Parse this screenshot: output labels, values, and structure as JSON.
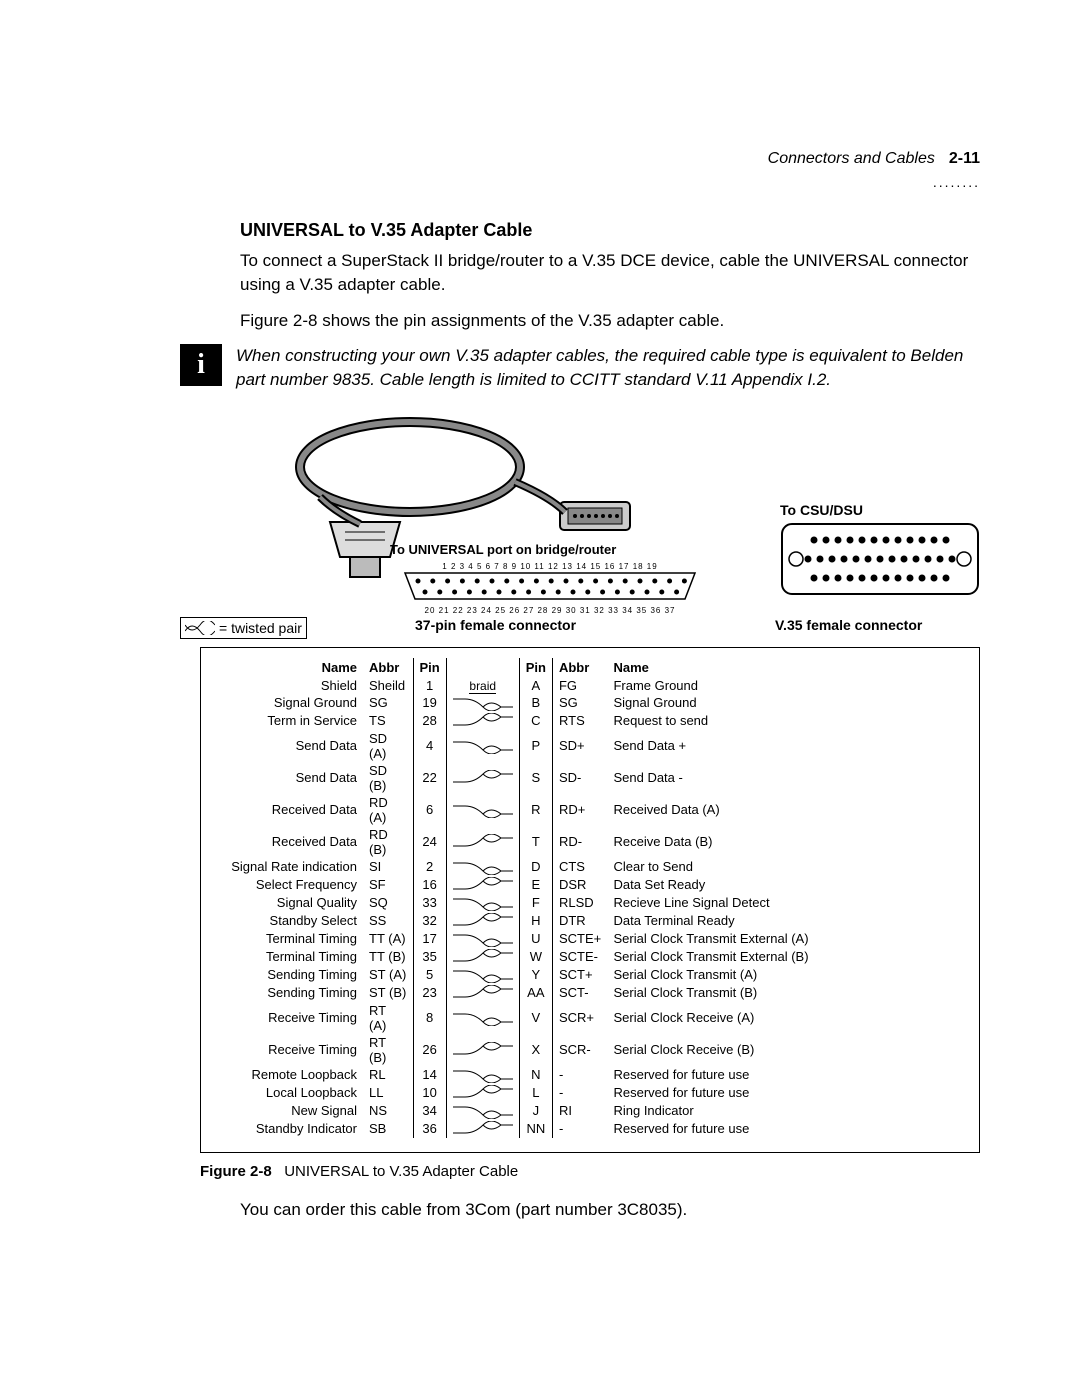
{
  "header": {
    "section_title": "Connectors and Cables",
    "page_number": "2-11",
    "dots": "........"
  },
  "section": {
    "title": "UNIVERSAL to V.35 Adapter Cable",
    "para1": "To connect a SuperStack II bridge/router to a V.35 DCE device, cable the UNIVERSAL connector using a V.35 adapter cable.",
    "para2": "Figure 2-8 shows the pin assignments of the V.35 adapter cable.",
    "note": "When constructing your own V.35 adapter cables, the required cable type is equivalent to Belden part number 9835. Cable length is limited to CCITT standard V.11 Appendix I.2."
  },
  "diagram": {
    "to_csu": "To CSU/DSU",
    "to_universal": "To UNIVERSAL port on bridge/router",
    "twisted_legend": "= twisted pair",
    "left_caption": "37-pin female connector",
    "right_caption": "V.35 female connector",
    "db37_top_pins": "1  2  3  4  5  6  7  8  9 10 11 12 13 14 15 16 17 18 19",
    "db37_bot_pins": "20 21 22 23 24 25 26 27 28 29 30 31 32 33 34 35 36 37"
  },
  "table": {
    "headers": {
      "name_l": "Name",
      "abbr_l": "Abbr",
      "pin_l": "Pin",
      "pin_r": "Pin",
      "abbr_r": "Abbr",
      "name_r": "Name"
    },
    "braid_label": "braid",
    "rows": [
      {
        "name_l": "Shield",
        "abbr_l": "Sheild",
        "pin_l": "1",
        "mid": "braid",
        "pin_r": "A",
        "abbr_r": "FG",
        "name_r": "Frame Ground",
        "pair": "start"
      },
      {
        "name_l": "Signal Ground",
        "abbr_l": "SG",
        "pin_l": "19",
        "mid": "tw",
        "pin_r": "B",
        "abbr_r": "SG",
        "name_r": "Signal Ground",
        "pair": "a"
      },
      {
        "name_l": "Term in Service",
        "abbr_l": "TS",
        "pin_l": "28",
        "mid": "tw",
        "pin_r": "C",
        "abbr_r": "RTS",
        "name_r": "Request to send",
        "pair": "b"
      },
      {
        "name_l": "Send Data",
        "abbr_l": "SD (A)",
        "pin_l": "4",
        "mid": "tw",
        "pin_r": "P",
        "abbr_r": "SD+",
        "name_r": "Send Data +",
        "pair": "a"
      },
      {
        "name_l": "Send Data",
        "abbr_l": "SD (B)",
        "pin_l": "22",
        "mid": "tw",
        "pin_r": "S",
        "abbr_r": "SD-",
        "name_r": "Send Data -",
        "pair": "b"
      },
      {
        "name_l": "Received Data",
        "abbr_l": "RD (A)",
        "pin_l": "6",
        "mid": "tw",
        "pin_r": "R",
        "abbr_r": "RD+",
        "name_r": "Received Data (A)",
        "pair": "a"
      },
      {
        "name_l": "Received Data",
        "abbr_l": "RD (B)",
        "pin_l": "24",
        "mid": "tw",
        "pin_r": "T",
        "abbr_r": "RD-",
        "name_r": "Receive Data (B)",
        "pair": "b"
      },
      {
        "name_l": "Signal Rate indication",
        "abbr_l": "SI",
        "pin_l": "2",
        "mid": "tw",
        "pin_r": "D",
        "abbr_r": "CTS",
        "name_r": "Clear to Send",
        "pair": "a"
      },
      {
        "name_l": "Select Frequency",
        "abbr_l": "SF",
        "pin_l": "16",
        "mid": "tw",
        "pin_r": "E",
        "abbr_r": "DSR",
        "name_r": "Data Set Ready",
        "pair": "b"
      },
      {
        "name_l": "Signal Quality",
        "abbr_l": "SQ",
        "pin_l": "33",
        "mid": "tw",
        "pin_r": "F",
        "abbr_r": "RLSD",
        "name_r": "Recieve Line Signal Detect",
        "pair": "a"
      },
      {
        "name_l": "Standby Select",
        "abbr_l": "SS",
        "pin_l": "32",
        "mid": "tw",
        "pin_r": "H",
        "abbr_r": "DTR",
        "name_r": "Data Terminal Ready",
        "pair": "b"
      },
      {
        "name_l": "Terminal Timing",
        "abbr_l": "TT (A)",
        "pin_l": "17",
        "mid": "tw",
        "pin_r": "U",
        "abbr_r": "SCTE+",
        "name_r": "Serial Clock Transmit External (A)",
        "pair": "a"
      },
      {
        "name_l": "Terminal Timing",
        "abbr_l": "TT (B)",
        "pin_l": "35",
        "mid": "tw",
        "pin_r": "W",
        "abbr_r": "SCTE-",
        "name_r": "Serial Clock Transmit External (B)",
        "pair": "b"
      },
      {
        "name_l": "Sending Timing",
        "abbr_l": "ST (A)",
        "pin_l": "5",
        "mid": "tw",
        "pin_r": "Y",
        "abbr_r": "SCT+",
        "name_r": "Serial Clock Transmit (A)",
        "pair": "a"
      },
      {
        "name_l": "Sending Timing",
        "abbr_l": "ST (B)",
        "pin_l": "23",
        "mid": "tw",
        "pin_r": "AA",
        "abbr_r": "SCT-",
        "name_r": "Serial Clock Transmit (B)",
        "pair": "b"
      },
      {
        "name_l": "Receive Timing",
        "abbr_l": "RT (A)",
        "pin_l": "8",
        "mid": "tw",
        "pin_r": "V",
        "abbr_r": "SCR+",
        "name_r": "Serial Clock Receive (A)",
        "pair": "a"
      },
      {
        "name_l": "Receive Timing",
        "abbr_l": "RT (B)",
        "pin_l": "26",
        "mid": "tw",
        "pin_r": "X",
        "abbr_r": "SCR-",
        "name_r": "Serial Clock Receive (B)",
        "pair": "b"
      },
      {
        "name_l": "Remote Loopback",
        "abbr_l": "RL",
        "pin_l": "14",
        "mid": "tw",
        "pin_r": "N",
        "abbr_r": "-",
        "name_r": "Reserved for future use",
        "pair": "a"
      },
      {
        "name_l": "Local Loopback",
        "abbr_l": "LL",
        "pin_l": "10",
        "mid": "tw",
        "pin_r": "L",
        "abbr_r": "-",
        "name_r": "Reserved for future use",
        "pair": "b"
      },
      {
        "name_l": "New Signal",
        "abbr_l": "NS",
        "pin_l": "34",
        "mid": "tw",
        "pin_r": "J",
        "abbr_r": "RI",
        "name_r": "Ring Indicator",
        "pair": "a"
      },
      {
        "name_l": "Standby Indicator",
        "abbr_l": "SB",
        "pin_l": "36",
        "mid": "tw",
        "pin_r": "NN",
        "abbr_r": "-",
        "name_r": "Reserved for future use",
        "pair": "b"
      }
    ]
  },
  "caption": {
    "label": "Figure 2-8",
    "text": "UNIVERSAL to V.35 Adapter Cable"
  },
  "closing": "You can order this cable from 3Com (part number 3C8035).",
  "style": {
    "colors": {
      "text": "#000000",
      "bg": "#ffffff",
      "border": "#000000"
    },
    "fonts": {
      "body": "Arial",
      "body_size_pt": 12,
      "title_size_pt": 14,
      "table_size_pt": 10
    }
  }
}
